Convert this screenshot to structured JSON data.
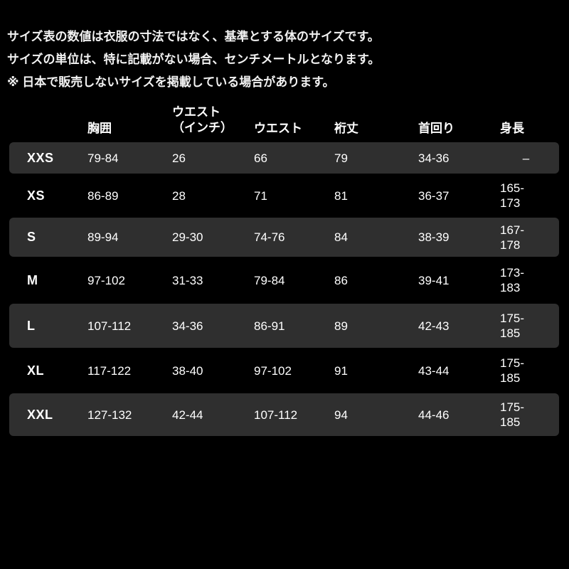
{
  "notes": {
    "line1": "サイズ表の数値は衣服の寸法ではなく、基準とする体のサイズです。",
    "line2": "サイズの単位は、特に記載がない場合、センチメートルとなります。",
    "line3": "※ 日本で販売しないサイズを掲載している場合があります。"
  },
  "table": {
    "headers": {
      "size": "",
      "chest": "胸囲",
      "waist_inch_l1": "ウエスト",
      "waist_inch_l2": "（インチ）",
      "waist_cm": "ウエスト",
      "sleeve": "裄丈",
      "neck": "首回り",
      "height": "身長"
    },
    "rows": [
      {
        "size": "XXS",
        "chest": "79-84",
        "waist_inch": "26",
        "waist_cm": "66",
        "sleeve": "79",
        "neck": "34-36",
        "height_l1": "–",
        "height_l2": ""
      },
      {
        "size": "XS",
        "chest": "86-89",
        "waist_inch": "28",
        "waist_cm": "71",
        "sleeve": "81",
        "neck": "36-37",
        "height_l1": "165-",
        "height_l2": "173"
      },
      {
        "size": "S",
        "chest": "89-94",
        "waist_inch": "29-30",
        "waist_cm": "74-76",
        "sleeve": "84",
        "neck": "38-39",
        "height_l1": "167-",
        "height_l2": "178"
      },
      {
        "size": "M",
        "chest": "97-102",
        "waist_inch": "31-33",
        "waist_cm": "79-84",
        "sleeve": "86",
        "neck": "39-41",
        "height_l1": "173-",
        "height_l2": "183"
      },
      {
        "size": "L",
        "chest": "107-112",
        "waist_inch": "34-36",
        "waist_cm": "86-91",
        "sleeve": "89",
        "neck": "42-43",
        "height_l1": "175-",
        "height_l2": "185"
      },
      {
        "size": "XL",
        "chest": "117-122",
        "waist_inch": "38-40",
        "waist_cm": "97-102",
        "sleeve": "91",
        "neck": "43-44",
        "height_l1": "175-",
        "height_l2": "185"
      },
      {
        "size": "XXL",
        "chest": "127-132",
        "waist_inch": "42-44",
        "waist_cm": "107-112",
        "sleeve": "94",
        "neck": "44-46",
        "height_l1": "175-",
        "height_l2": "185"
      }
    ]
  },
  "colors": {
    "background": "#000000",
    "row_stripe": "#2f2f2f",
    "text_primary": "#ffffff",
    "text_notes": "#f2f2f2"
  }
}
